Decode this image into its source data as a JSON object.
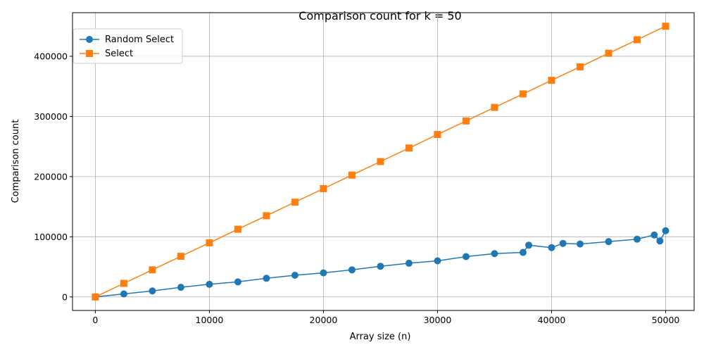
{
  "chart_data": {
    "type": "line",
    "title": "Comparison count for k = 50",
    "xlabel": "Array size (n)",
    "ylabel": "Comparison count",
    "xlim": [
      -2000,
      52500
    ],
    "ylim": [
      -22500,
      472500
    ],
    "xticks": [
      0,
      10000,
      20000,
      30000,
      40000,
      50000
    ],
    "yticks": [
      0,
      100000,
      200000,
      300000,
      400000
    ],
    "grid": true,
    "legend_position": "upper-left",
    "series": [
      {
        "name": "Random Select",
        "color": "#1f77b4",
        "marker": "circle",
        "x": [
          0,
          2500,
          5000,
          7500,
          10000,
          12500,
          15000,
          17500,
          20000,
          22500,
          25000,
          27500,
          30000,
          32500,
          35000,
          37500,
          38000,
          40000,
          41000,
          42500,
          45000,
          47500,
          49000,
          49500,
          50000
        ],
        "y": [
          0,
          5000,
          10000,
          16000,
          21000,
          25000,
          31000,
          36000,
          40000,
          45000,
          51000,
          56000,
          60000,
          67000,
          72000,
          74000,
          86000,
          82000,
          89000,
          88000,
          92000,
          96000,
          103000,
          93000,
          110000
        ]
      },
      {
        "name": "Select",
        "color": "#ff7f0e",
        "marker": "square",
        "x": [
          0,
          2500,
          5000,
          7500,
          10000,
          12500,
          15000,
          17500,
          20000,
          22500,
          25000,
          27500,
          30000,
          32500,
          35000,
          37500,
          40000,
          42500,
          45000,
          47500,
          50000
        ],
        "y": [
          0,
          22500,
          45000,
          67500,
          90000,
          112500,
          135000,
          157500,
          180000,
          202500,
          225000,
          247500,
          270000,
          292500,
          315000,
          337500,
          360000,
          382500,
          405000,
          427500,
          450000
        ]
      }
    ]
  }
}
